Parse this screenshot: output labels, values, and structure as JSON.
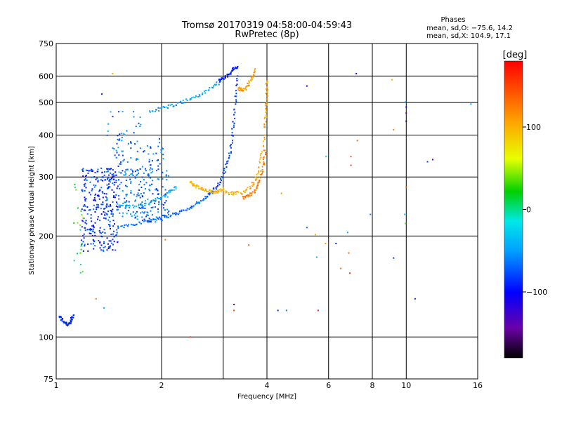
{
  "header": {
    "title": "Tromsø 20170319 04:58:00-04:59:43",
    "subtitle": "RwPretec (8p)"
  },
  "stats": {
    "heading": "Phases",
    "line1": "mean, sd,O: −75.6, 14.2",
    "line2": "mean, sd,X: 104.9, 17.1"
  },
  "colorbar": {
    "label": "[deg]",
    "min": -180,
    "max": 180,
    "ticks": [
      {
        "value": 100,
        "label": "100"
      },
      {
        "value": 0,
        "label": "0"
      },
      {
        "value": -100,
        "label": "−100"
      }
    ]
  },
  "chart_data": {
    "type": "scatter",
    "title": "Tromsø 20170319 04:58:00-04:59:43",
    "subtitle": "RwPretec (8p)",
    "xlabel": "Frequency [MHz]",
    "ylabel": "Stationary phase Virtual Height [km]",
    "x_scale": "log",
    "y_scale": "log",
    "xlim": [
      1,
      16
    ],
    "ylim": [
      75,
      750
    ],
    "xticks": [
      {
        "value": 1,
        "label": "1"
      },
      {
        "value": 2,
        "label": "2"
      },
      {
        "value": 4,
        "label": "4"
      },
      {
        "value": 6,
        "label": "6"
      },
      {
        "value": 8,
        "label": "8"
      },
      {
        "value": 10,
        "label": "10"
      },
      {
        "value": 16,
        "label": "16"
      }
    ],
    "xgrid": [
      1,
      2,
      3,
      4,
      6,
      8,
      10,
      16
    ],
    "yticks": [
      {
        "value": 75,
        "label": "75"
      },
      {
        "value": 100,
        "label": "100"
      },
      {
        "value": 200,
        "label": "200"
      },
      {
        "value": 300,
        "label": "300"
      },
      {
        "value": 400,
        "label": "400"
      },
      {
        "value": 500,
        "label": "500"
      },
      {
        "value": 600,
        "label": "600"
      },
      {
        "value": 750,
        "label": "750"
      }
    ],
    "grid": true,
    "color_variable": "phase (deg)",
    "traces": [
      {
        "x": [
          1.02,
          1.05,
          1.08,
          1.1,
          1.12
        ],
        "y": [
          115,
          111,
          109,
          111,
          116
        ],
        "phase": -90
      },
      {
        "x": [
          1.5,
          1.65,
          1.8,
          1.95,
          2.1,
          2.25,
          2.4,
          2.55,
          2.7,
          2.8
        ],
        "y": [
          212,
          217,
          221,
          226,
          230,
          235,
          242,
          252,
          262,
          272
        ],
        "phase": -70
      },
      {
        "x": [
          1.5,
          1.65,
          1.8,
          1.95,
          2.1,
          2.2
        ],
        "y": [
          250,
          245,
          248,
          257,
          270,
          280
        ],
        "phase": -40
      },
      {
        "x": [
          2.8,
          2.95,
          3.05,
          3.15,
          3.2,
          3.25,
          3.3
        ],
        "y": [
          272,
          290,
          320,
          360,
          420,
          500,
          600
        ],
        "phase": -85
      },
      {
        "x": [
          1.85,
          2.0,
          2.2,
          2.4,
          2.6,
          2.8,
          2.95
        ],
        "y": [
          470,
          480,
          495,
          510,
          530,
          555,
          580
        ],
        "phase": -45
      },
      {
        "x": [
          2.9,
          3.0,
          3.1,
          3.2,
          3.3
        ],
        "y": [
          580,
          590,
          605,
          625,
          640
        ],
        "phase": -95
      },
      {
        "x": [
          2.4,
          2.5,
          2.6,
          2.7,
          2.8,
          2.9,
          3.0
        ],
        "y": [
          290,
          282,
          276,
          272,
          270,
          272,
          278
        ],
        "phase": 100
      },
      {
        "x": [
          3.0,
          3.2,
          3.4,
          3.6,
          3.75,
          3.85,
          3.95
        ],
        "y": [
          270,
          268,
          270,
          280,
          300,
          340,
          400
        ],
        "phase": 105
      },
      {
        "x": [
          3.4,
          3.55,
          3.7,
          3.8,
          3.9,
          3.95
        ],
        "y": [
          260,
          263,
          272,
          290,
          320,
          360
        ],
        "phase": 125
      },
      {
        "x": [
          3.95,
          3.97,
          3.99,
          4.0
        ],
        "y": [
          420,
          470,
          530,
          580
        ],
        "phase": 110
      },
      {
        "x": [
          3.3,
          3.4,
          3.5,
          3.6,
          3.7
        ],
        "y": [
          550,
          545,
          555,
          585,
          630
        ],
        "phase": 110
      }
    ],
    "clouds": [
      {
        "x_range": [
          1.18,
          1.5
        ],
        "y_range": [
          180,
          320
        ],
        "count": 300,
        "phase": -85
      },
      {
        "x_range": [
          1.5,
          2.1
        ],
        "y_range": [
          220,
          320
        ],
        "count": 200,
        "phase": -65
      },
      {
        "x_range": [
          1.45,
          2.05
        ],
        "y_range": [
          320,
          390
        ],
        "count": 60,
        "phase": -70
      },
      {
        "x_range": [
          1.35,
          1.75
        ],
        "y_range": [
          380,
          470
        ],
        "count": 25,
        "phase": -60
      },
      {
        "x_range": [
          1.12,
          1.2
        ],
        "y_range": [
          150,
          300
        ],
        "count": 20,
        "phase": 20
      }
    ],
    "points": [
      {
        "x": 1.35,
        "y": 530,
        "phase": -90
      },
      {
        "x": 1.45,
        "y": 610,
        "phase": 100
      },
      {
        "x": 1.3,
        "y": 130,
        "phase": 130
      },
      {
        "x": 1.37,
        "y": 122,
        "phase": -40
      },
      {
        "x": 2.05,
        "y": 195,
        "phase": 130
      },
      {
        "x": 2.42,
        "y": 100,
        "phase": 150
      },
      {
        "x": 3.22,
        "y": 125,
        "phase": -150
      },
      {
        "x": 3.22,
        "y": 120,
        "phase": 150
      },
      {
        "x": 3.55,
        "y": 188,
        "phase": 140
      },
      {
        "x": 4.3,
        "y": 120,
        "phase": -90
      },
      {
        "x": 4.55,
        "y": 120,
        "phase": -60
      },
      {
        "x": 4.4,
        "y": 268,
        "phase": 110
      },
      {
        "x": 5.2,
        "y": 560,
        "phase": -100
      },
      {
        "x": 5.2,
        "y": 212,
        "phase": -70
      },
      {
        "x": 5.5,
        "y": 202,
        "phase": 100
      },
      {
        "x": 5.55,
        "y": 173,
        "phase": -40
      },
      {
        "x": 5.6,
        "y": 120,
        "phase": 170
      },
      {
        "x": 5.88,
        "y": 190,
        "phase": 110
      },
      {
        "x": 5.9,
        "y": 345,
        "phase": -10
      },
      {
        "x": 6.3,
        "y": 190,
        "phase": -90
      },
      {
        "x": 6.5,
        "y": 160,
        "phase": 130
      },
      {
        "x": 6.85,
        "y": 178,
        "phase": 140
      },
      {
        "x": 6.9,
        "y": 155,
        "phase": 160
      },
      {
        "x": 6.95,
        "y": 345,
        "phase": 140
      },
      {
        "x": 6.95,
        "y": 325,
        "phase": 150
      },
      {
        "x": 6.8,
        "y": 205,
        "phase": -50
      },
      {
        "x": 7.2,
        "y": 610,
        "phase": -110
      },
      {
        "x": 7.25,
        "y": 385,
        "phase": 130
      },
      {
        "x": 7.9,
        "y": 232,
        "phase": -60
      },
      {
        "x": 9.1,
        "y": 585,
        "phase": 100
      },
      {
        "x": 9.2,
        "y": 415,
        "phase": 120
      },
      {
        "x": 9.2,
        "y": 172,
        "phase": -80
      },
      {
        "x": 9.9,
        "y": 232,
        "phase": -30
      },
      {
        "x": 9.95,
        "y": 218,
        "phase": 30
      },
      {
        "x": 10.0,
        "y": 465,
        "phase": -150
      },
      {
        "x": 10.0,
        "y": 485,
        "phase": -110
      },
      {
        "x": 10.0,
        "y": 440,
        "phase": -170
      },
      {
        "x": 10.0,
        "y": 280,
        "phase": 140
      },
      {
        "x": 9.95,
        "y": 502,
        "phase": -50
      },
      {
        "x": 10.6,
        "y": 130,
        "phase": -90
      },
      {
        "x": 11.5,
        "y": 333,
        "phase": -80
      },
      {
        "x": 11.9,
        "y": 338,
        "phase": -120
      },
      {
        "x": 15.3,
        "y": 495,
        "phase": -40
      }
    ]
  }
}
